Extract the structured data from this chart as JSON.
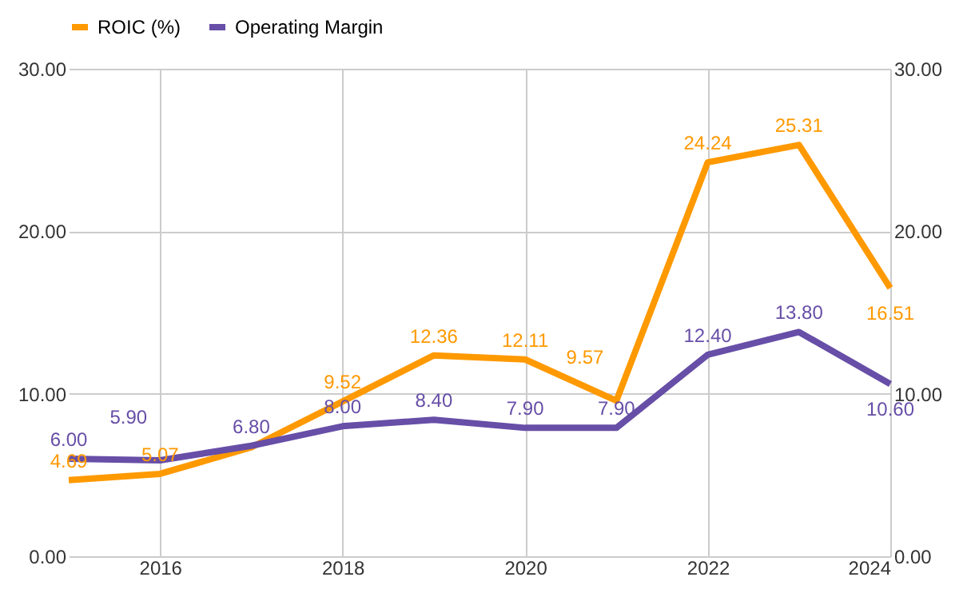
{
  "chart_data": {
    "type": "line",
    "x": [
      2015,
      2016,
      2017,
      2018,
      2019,
      2020,
      2021,
      2022,
      2023,
      2024
    ],
    "series": [
      {
        "name": "ROIC (%)",
        "color": "#ff9900",
        "values": [
          4.69,
          5.07,
          6.7,
          9.52,
          12.36,
          12.11,
          9.57,
          24.24,
          25.31,
          16.51
        ],
        "value_labels": [
          "4.69",
          "5.07",
          null,
          "9.52",
          "12.36",
          "12.11",
          "9.57",
          "24.24",
          "25.31",
          "16.51"
        ]
      },
      {
        "name": "Operating Margin",
        "color": "#674ea7",
        "values": [
          6.0,
          5.9,
          6.8,
          8.0,
          8.4,
          7.9,
          7.9,
          12.4,
          13.8,
          10.6
        ],
        "value_labels": [
          "6.00",
          "5.90",
          "6.80",
          "8.00",
          "8.40",
          "7.90",
          "7.90",
          "12.40",
          "13.80",
          "10.60"
        ]
      }
    ],
    "xlim": [
      2015,
      2024
    ],
    "xticks": [
      2016,
      2018,
      2020,
      2022,
      2024
    ],
    "ylim": [
      0,
      30
    ],
    "yticks": [
      {
        "value": 0,
        "label": "0.00"
      },
      {
        "value": 10,
        "label": "10.00"
      },
      {
        "value": 20,
        "label": "20.00"
      },
      {
        "value": 30,
        "label": "30.00"
      }
    ],
    "y2lim": [
      0,
      30
    ],
    "y2ticks": [
      {
        "value": 0,
        "label": "0.00"
      },
      {
        "value": 10,
        "label": "10.00"
      },
      {
        "value": 20,
        "label": "20.00"
      },
      {
        "value": 30,
        "label": "30.00"
      }
    ],
    "grid": true,
    "legend": "top",
    "marker": "none",
    "line_style": "solid"
  }
}
